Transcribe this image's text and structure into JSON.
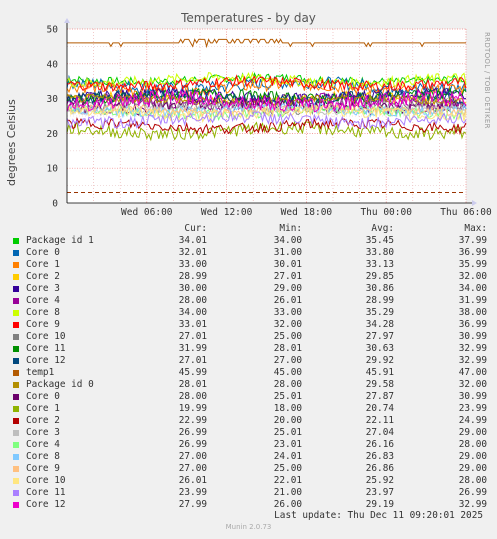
{
  "chart_data": {
    "type": "line",
    "title": "Temperatures - by day",
    "ylabel": "degrees Celsius",
    "side_text": "RRDTOOL / TOBI OETIKER",
    "ylim": [
      0,
      50
    ],
    "yticks": [
      0,
      10,
      20,
      30,
      40,
      50
    ],
    "x_ticks": [
      "Wed 06:00",
      "Wed 12:00",
      "Wed 18:00",
      "Thu 00:00",
      "Thu 06:00"
    ],
    "x_range_hours": [
      0,
      30
    ],
    "x_tick_hours": [
      6,
      12,
      18,
      24,
      30
    ],
    "columns": [
      "Cur:",
      "Min:",
      "Avg:",
      "Max:"
    ],
    "series": [
      {
        "name": "Package id 1",
        "color": "#00cc00",
        "cur": "34.01",
        "min": "34.00",
        "avg": "35.45",
        "max": "37.99"
      },
      {
        "name": "Core 0",
        "color": "#0066b3",
        "cur": "32.01",
        "min": "31.00",
        "avg": "33.80",
        "max": "36.99"
      },
      {
        "name": "Core 1",
        "color": "#ff8000",
        "cur": "33.00",
        "min": "30.01",
        "avg": "33.13",
        "max": "35.99"
      },
      {
        "name": "Core 2",
        "color": "#ffcc00",
        "cur": "28.99",
        "min": "27.01",
        "avg": "29.85",
        "max": "32.00"
      },
      {
        "name": "Core 3",
        "color": "#330099",
        "cur": "30.00",
        "min": "29.00",
        "avg": "30.86",
        "max": "34.00"
      },
      {
        "name": "Core 4",
        "color": "#990099",
        "cur": "28.00",
        "min": "26.01",
        "avg": "28.99",
        "max": "31.99"
      },
      {
        "name": "Core 8",
        "color": "#ccff00",
        "cur": "34.00",
        "min": "33.00",
        "avg": "35.29",
        "max": "38.00"
      },
      {
        "name": "Core 9",
        "color": "#ff0000",
        "cur": "33.01",
        "min": "32.00",
        "avg": "34.28",
        "max": "36.99"
      },
      {
        "name": "Core 10",
        "color": "#808080",
        "cur": "27.01",
        "min": "25.00",
        "avg": "27.97",
        "max": "30.99"
      },
      {
        "name": "Core 11",
        "color": "#008f00",
        "cur": "31.99",
        "min": "28.01",
        "avg": "30.63",
        "max": "32.99"
      },
      {
        "name": "Core 12",
        "color": "#00487d",
        "cur": "27.01",
        "min": "27.00",
        "avg": "29.92",
        "max": "32.99"
      },
      {
        "name": "temp1",
        "color": "#b35a00",
        "cur": "45.99",
        "min": "45.00",
        "avg": "45.91",
        "max": "47.00"
      },
      {
        "name": "Package id 0",
        "color": "#b38f00",
        "cur": "28.01",
        "min": "28.00",
        "avg": "29.58",
        "max": "32.00"
      },
      {
        "name": "Core 0",
        "color": "#6b006b",
        "cur": "28.00",
        "min": "25.01",
        "avg": "27.87",
        "max": "30.99"
      },
      {
        "name": "Core 1",
        "color": "#8fb300",
        "cur": "19.99",
        "min": "18.00",
        "avg": "20.74",
        "max": "23.99"
      },
      {
        "name": "Core 2",
        "color": "#b30000",
        "cur": "22.99",
        "min": "20.00",
        "avg": "22.11",
        "max": "24.99"
      },
      {
        "name": "Core 3",
        "color": "#bebebe",
        "cur": "26.99",
        "min": "25.01",
        "avg": "27.04",
        "max": "29.00"
      },
      {
        "name": "Core 4",
        "color": "#80ff80",
        "cur": "26.99",
        "min": "23.01",
        "avg": "26.16",
        "max": "28.00"
      },
      {
        "name": "Core 8",
        "color": "#80c9ff",
        "cur": "27.00",
        "min": "24.01",
        "avg": "26.83",
        "max": "29.00"
      },
      {
        "name": "Core 9",
        "color": "#ffc080",
        "cur": "27.00",
        "min": "25.00",
        "avg": "26.86",
        "max": "29.00"
      },
      {
        "name": "Core 10",
        "color": "#ffe680",
        "cur": "26.01",
        "min": "22.01",
        "avg": "25.92",
        "max": "28.00"
      },
      {
        "name": "Core 11",
        "color": "#aa80ff",
        "cur": "23.99",
        "min": "21.00",
        "avg": "23.97",
        "max": "26.99"
      },
      {
        "name": "Core 12",
        "color": "#ee00cc",
        "cur": "27.99",
        "min": "26.00",
        "avg": "29.19",
        "max": "32.99"
      }
    ],
    "reference_line": {
      "value": 3,
      "color": "#993300",
      "style": "dashed"
    },
    "last_update": "Last update: Thu Dec 11 09:20:01 2025"
  },
  "footer": "Munin 2.0.73"
}
